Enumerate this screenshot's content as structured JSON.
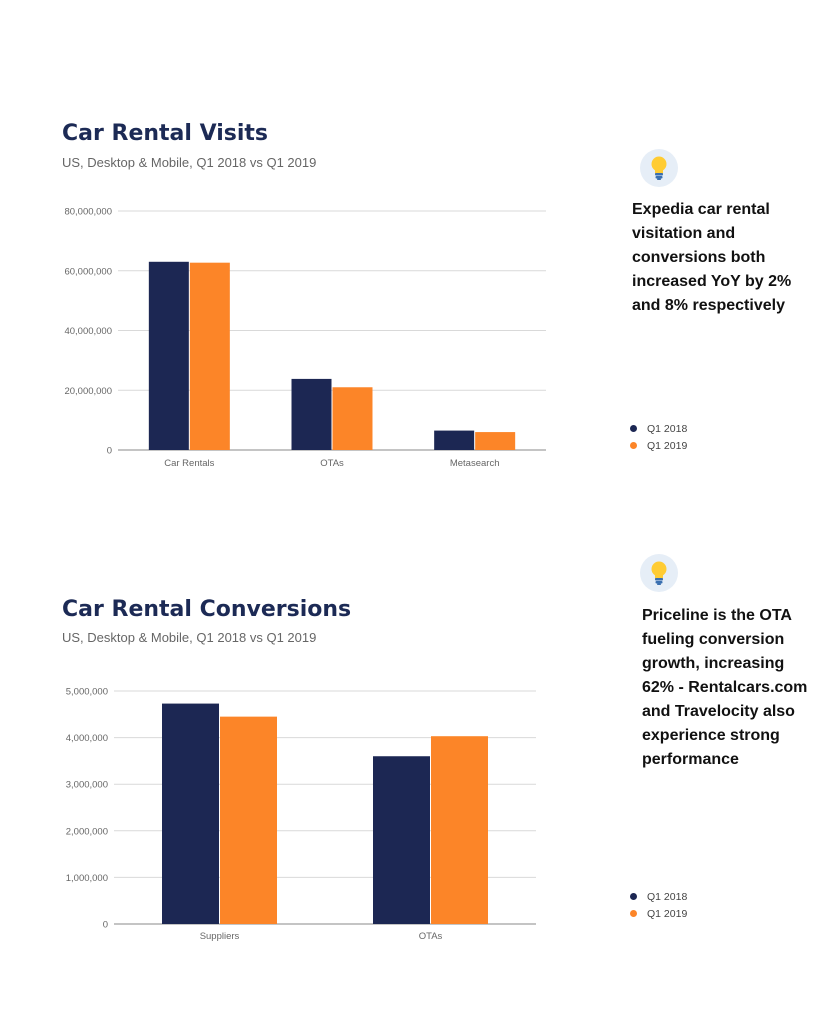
{
  "colors": {
    "series_2018": "#1c2753",
    "series_2019": "#fc8528",
    "grid": "#d9d9d9",
    "bulb_bg": "#e6eef7"
  },
  "panels": [
    {
      "title": "Car Rental Visits",
      "subtitle": "US, Desktop & Mobile, Q1 2018 vs Q1 2019",
      "insight_lines": [
        "Expedia car rental",
        "visitation and",
        "conversions both",
        "increased YoY by 2%",
        "and 8% respectively"
      ],
      "insight_icon": "lightbulb-icon",
      "legend": [
        "Q1 2018",
        "Q1 2019"
      ]
    },
    {
      "title": "Car Rental Conversions",
      "subtitle": "US, Desktop & Mobile, Q1 2018 vs Q1 2019",
      "insight_lines": [
        "Priceline is the OTA",
        "fueling conversion",
        "growth, increasing",
        "62% - Rentalcars.com",
        "and Travelocity also",
        "experience strong",
        "performance"
      ],
      "insight_icon": "lightbulb-icon",
      "legend": [
        "Q1 2018",
        "Q1 2019"
      ]
    }
  ],
  "chart_data": [
    {
      "type": "bar",
      "title": "Car Rental Visits",
      "subtitle": "US, Desktop & Mobile, Q1 2018 vs Q1 2019",
      "categories": [
        "Car Rentals",
        "OTAs",
        "Metasearch"
      ],
      "series": [
        {
          "name": "Q1 2018",
          "values": [
            63000000,
            23800000,
            6500000
          ]
        },
        {
          "name": "Q1 2019",
          "values": [
            62700000,
            21000000,
            6000000
          ]
        }
      ],
      "ylim": [
        0,
        80000000
      ],
      "yticks": [
        0,
        20000000,
        40000000,
        60000000,
        80000000
      ],
      "ytick_labels": [
        "0",
        "20,000,000",
        "40,000,000",
        "60,000,000",
        "80,000,000"
      ],
      "grid": true,
      "legend_position": "right"
    },
    {
      "type": "bar",
      "title": "Car Rental Conversions",
      "subtitle": "US, Desktop & Mobile, Q1 2018 vs Q1 2019",
      "categories": [
        "Suppliers",
        "OTAs"
      ],
      "series": [
        {
          "name": "Q1 2018",
          "values": [
            4730000,
            3600000
          ]
        },
        {
          "name": "Q1 2019",
          "values": [
            4450000,
            4030000
          ]
        }
      ],
      "ylim": [
        0,
        5000000
      ],
      "yticks": [
        0,
        1000000,
        2000000,
        3000000,
        4000000,
        5000000
      ],
      "ytick_labels": [
        "0",
        "1,000,000",
        "2,000,000",
        "3,000,000",
        "4,000,000",
        "5,000,000"
      ],
      "grid": true,
      "legend_position": "right"
    }
  ]
}
